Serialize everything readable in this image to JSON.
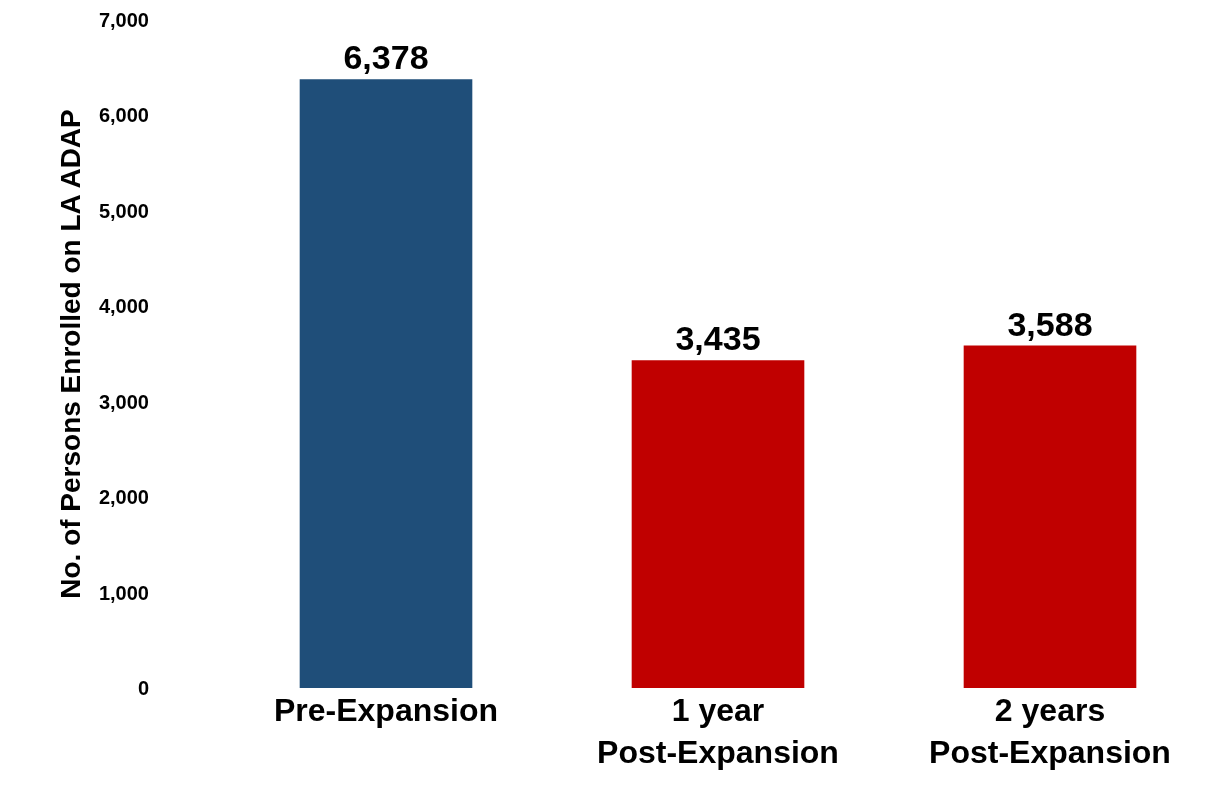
{
  "chart_data": {
    "type": "bar",
    "ylabel": "No. of Persons Enrolled on LA ADAP",
    "categories": [
      "Pre-Expansion",
      "1 year\nPost-Expansion",
      "2 years\nPost-Expansion"
    ],
    "values": [
      6378,
      3435,
      3588
    ],
    "colors": [
      "#1f4e79",
      "#c00000",
      "#c00000"
    ],
    "value_labels": [
      "6,378",
      "3,435",
      "3,588"
    ],
    "ylim": [
      0,
      7000
    ],
    "yticks": [
      {
        "value": 0,
        "label": "0"
      },
      {
        "value": 1000,
        "label": "1,000"
      },
      {
        "value": 2000,
        "label": "2,000"
      },
      {
        "value": 3000,
        "label": "3,000"
      },
      {
        "value": 4000,
        "label": "4,000"
      },
      {
        "value": 5000,
        "label": "5,000"
      },
      {
        "value": 6000,
        "label": "6,000"
      },
      {
        "value": 7000,
        "label": "7,000"
      }
    ],
    "grid": false
  }
}
